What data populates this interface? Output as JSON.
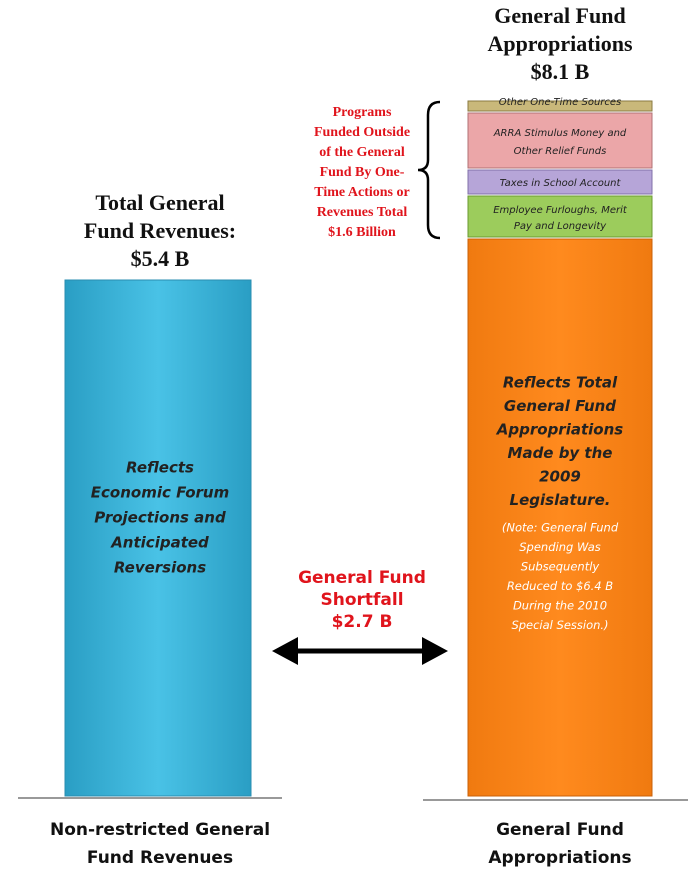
{
  "right_title": [
    "General Fund",
    "Appropriations",
    "$8.1 B"
  ],
  "left_title": [
    "Total General",
    "Fund Revenues:",
    "$5.4 B"
  ],
  "one_time_note": [
    "Programs",
    "Funded Outside",
    "of the General",
    "Fund By One-",
    "Time Actions or",
    "Revenues Total",
    "$1.6 Billion"
  ],
  "segments": [
    [
      "Other One-Time Sources"
    ],
    [
      "ARRA Stimulus Money and",
      "Other Relief Funds"
    ],
    [
      "Taxes in School Account"
    ],
    [
      "Employee Furloughs, Merit",
      "Pay and Longevity"
    ]
  ],
  "right_bar_text": [
    "Reflects Total",
    "General Fund",
    "Appropriations",
    "Made by the",
    "2009",
    "Legislature."
  ],
  "right_bar_note": [
    "(Note: General Fund",
    "Spending Was",
    "Subsequently",
    "Reduced to $6.4 B",
    "During the 2010",
    "Special Session.)"
  ],
  "left_bar_text": [
    "Reflects",
    "Economic Forum",
    "Projections and",
    "Anticipated",
    "Reversions"
  ],
  "shortfall": [
    "General Fund",
    "Shortfall",
    "$2.7 B"
  ],
  "left_label": [
    "Non-restricted General",
    "Fund Revenues"
  ],
  "right_label": [
    "General Fund",
    "Appropriations"
  ]
}
